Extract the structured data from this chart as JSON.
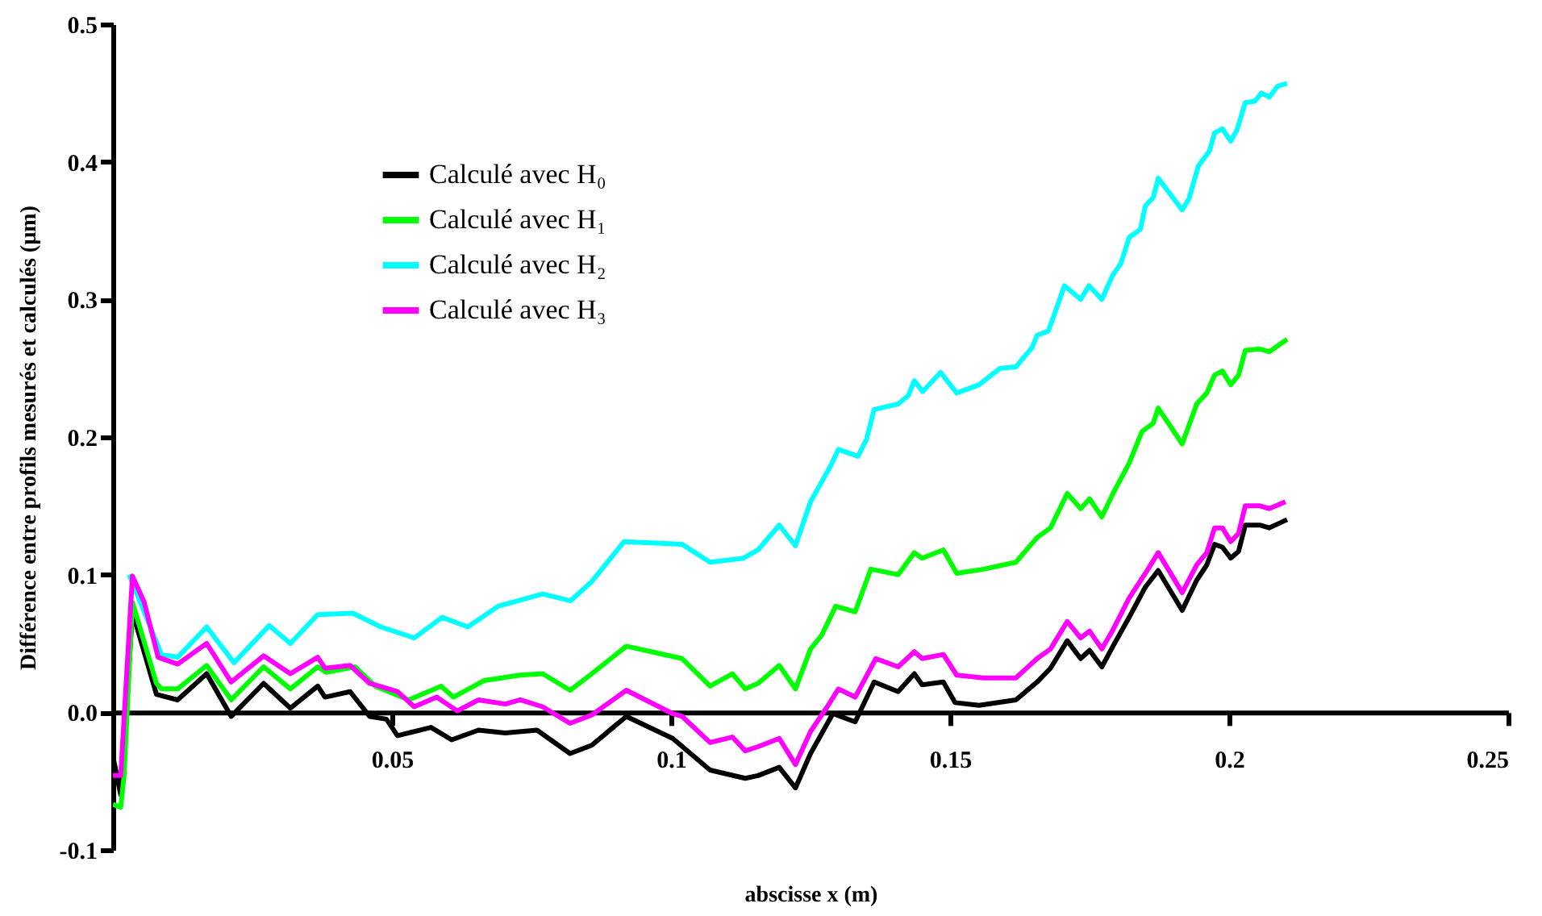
{
  "chart_data": {
    "type": "line",
    "xlabel": "abscisse x (m)",
    "ylabel": "Différence entre profils mesurés et calculés (µm)",
    "xlim": [
      0,
      0.25
    ],
    "xticks": [
      0.05,
      0.1,
      0.15,
      0.2,
      0.25
    ],
    "ylim": [
      -0.1,
      0.5
    ],
    "yticks": [
      -0.1,
      {
        "value": 0,
        "label": "0.0"
      },
      0.1,
      0.2,
      0.3,
      0.4,
      0.5
    ],
    "grid": false,
    "legend": "top left",
    "line_style": "solid",
    "marker": "none",
    "series": [
      {
        "name": "Calculé avec H₀",
        "color": "#000000",
        "x": [
          0,
          0.0014,
          0.0035,
          0.0078,
          0.0116,
          0.0168,
          0.0212,
          0.027,
          0.0318,
          0.0367,
          0.038,
          0.0425,
          0.046,
          0.049,
          0.051,
          0.057,
          0.0607,
          0.0655,
          0.0703,
          0.076,
          0.0819,
          0.0858,
          0.092,
          0.1003,
          0.107,
          0.1133,
          0.1156,
          0.1194,
          0.1223,
          0.125,
          0.129,
          0.133,
          0.1364,
          0.1407,
          0.1436,
          0.145,
          0.1488,
          0.1509,
          0.1552,
          0.1618,
          0.1656,
          0.168,
          0.171,
          0.1734,
          0.175,
          0.1772,
          0.1792,
          0.1821,
          0.185,
          0.1873,
          0.1916,
          0.1942,
          0.196,
          0.1974,
          0.1988,
          0.2003,
          0.2017,
          0.2029,
          0.2055,
          0.2072,
          0.2104
        ],
        "values": [
          -0.032,
          -0.06,
          0.073,
          0.013,
          0.009,
          0.028,
          -0.003,
          0.021,
          0.003,
          0.019,
          0.011,
          0.015,
          -0.003,
          -0.005,
          -0.017,
          -0.011,
          -0.02,
          -0.013,
          -0.015,
          -0.013,
          -0.03,
          -0.024,
          -0.003,
          -0.019,
          -0.042,
          -0.048,
          -0.046,
          -0.04,
          -0.055,
          -0.03,
          -0.001,
          -0.007,
          0.022,
          0.015,
          0.028,
          0.02,
          0.022,
          0.007,
          0.005,
          0.009,
          0.022,
          0.032,
          0.052,
          0.039,
          0.045,
          0.033,
          0.048,
          0.069,
          0.091,
          0.103,
          0.074,
          0.096,
          0.107,
          0.122,
          0.12,
          0.112,
          0.117,
          0.136,
          0.136,
          0.134,
          0.14
        ]
      },
      {
        "name": "Calculé avec H₁",
        "color": "#00ff00",
        "x": [
          0,
          0.0014,
          0.002,
          0.0035,
          0.0078,
          0.0087,
          0.0116,
          0.0168,
          0.0212,
          0.027,
          0.0318,
          0.0367,
          0.0382,
          0.0434,
          0.047,
          0.053,
          0.0588,
          0.061,
          0.0665,
          0.073,
          0.077,
          0.0819,
          0.0858,
          0.092,
          0.102,
          0.107,
          0.111,
          0.1133,
          0.1156,
          0.1194,
          0.1223,
          0.125,
          0.127,
          0.1295,
          0.133,
          0.1358,
          0.1407,
          0.1436,
          0.145,
          0.1488,
          0.1512,
          0.156,
          0.1618,
          0.1656,
          0.168,
          0.171,
          0.1734,
          0.175,
          0.1772,
          0.1792,
          0.1821,
          0.1844,
          0.1864,
          0.1873,
          0.1916,
          0.1942,
          0.196,
          0.1974,
          0.1988,
          0.2003,
          0.2017,
          0.2029,
          0.2055,
          0.2072,
          0.2104
        ],
        "values": [
          -0.067,
          -0.069,
          -0.046,
          0.08,
          0.021,
          0.017,
          0.017,
          0.034,
          0.009,
          0.033,
          0.017,
          0.033,
          0.029,
          0.033,
          0.019,
          0.009,
          0.019,
          0.011,
          0.023,
          0.027,
          0.028,
          0.016,
          0.028,
          0.048,
          0.039,
          0.019,
          0.028,
          0.017,
          0.021,
          0.034,
          0.017,
          0.046,
          0.056,
          0.077,
          0.073,
          0.104,
          0.1,
          0.116,
          0.112,
          0.118,
          0.101,
          0.104,
          0.109,
          0.127,
          0.134,
          0.159,
          0.148,
          0.155,
          0.142,
          0.159,
          0.181,
          0.204,
          0.21,
          0.221,
          0.195,
          0.224,
          0.232,
          0.245,
          0.248,
          0.238,
          0.245,
          0.263,
          0.264,
          0.262,
          0.271
        ]
      },
      {
        "name": "Calculé avec H₂",
        "color": "#00ffff",
        "x": [
          0.0029,
          0.0087,
          0.0116,
          0.0168,
          0.0217,
          0.028,
          0.0318,
          0.0367,
          0.043,
          0.048,
          0.054,
          0.059,
          0.0636,
          0.069,
          0.077,
          0.082,
          0.0858,
          0.0916,
          0.102,
          0.107,
          0.113,
          0.1156,
          0.1194,
          0.1223,
          0.125,
          0.1286,
          0.13,
          0.1335,
          0.135,
          0.1364,
          0.1407,
          0.1425,
          0.1436,
          0.1451,
          0.1483,
          0.1512,
          0.1552,
          0.159,
          0.1618,
          0.1647,
          0.1656,
          0.1676,
          0.1686,
          0.1705,
          0.1734,
          0.1749,
          0.1772,
          0.1792,
          0.1806,
          0.1821,
          0.1841,
          0.185,
          0.1864,
          0.1873,
          0.1916,
          0.1928,
          0.1945,
          0.1965,
          0.1974,
          0.1988,
          0.2003,
          0.2014,
          0.2029,
          0.2046,
          0.2058,
          0.2072,
          0.2087,
          0.2104
        ],
        "values": [
          0.1,
          0.042,
          0.04,
          0.062,
          0.036,
          0.063,
          0.05,
          0.071,
          0.072,
          0.062,
          0.054,
          0.069,
          0.062,
          0.077,
          0.086,
          0.081,
          0.095,
          0.124,
          0.122,
          0.109,
          0.112,
          0.118,
          0.136,
          0.121,
          0.153,
          0.179,
          0.191,
          0.186,
          0.198,
          0.22,
          0.224,
          0.23,
          0.241,
          0.233,
          0.247,
          0.232,
          0.238,
          0.25,
          0.251,
          0.265,
          0.274,
          0.277,
          0.288,
          0.31,
          0.3,
          0.31,
          0.3,
          0.318,
          0.326,
          0.345,
          0.351,
          0.368,
          0.374,
          0.388,
          0.365,
          0.373,
          0.397,
          0.408,
          0.421,
          0.424,
          0.415,
          0.423,
          0.443,
          0.444,
          0.45,
          0.447,
          0.455,
          0.457
        ]
      },
      {
        "name": "Calculé avec H₃",
        "color": "#ff00ff",
        "x": [
          0,
          0.0014,
          0.0035,
          0.0056,
          0.0081,
          0.0116,
          0.0168,
          0.0212,
          0.027,
          0.0318,
          0.0367,
          0.038,
          0.0425,
          0.046,
          0.051,
          0.054,
          0.058,
          0.0617,
          0.0655,
          0.0703,
          0.073,
          0.077,
          0.0819,
          0.0858,
          0.092,
          0.1003,
          0.102,
          0.107,
          0.111,
          0.1133,
          0.1156,
          0.1194,
          0.1223,
          0.125,
          0.128,
          0.13,
          0.133,
          0.1367,
          0.1407,
          0.1436,
          0.145,
          0.1488,
          0.1512,
          0.156,
          0.1618,
          0.1656,
          0.168,
          0.171,
          0.1734,
          0.175,
          0.1772,
          0.1792,
          0.1821,
          0.185,
          0.1873,
          0.1916,
          0.1942,
          0.196,
          0.1974,
          0.1988,
          0.2003,
          0.2017,
          0.2029,
          0.2055,
          0.2072,
          0.2101
        ],
        "values": [
          -0.046,
          -0.046,
          0.099,
          0.08,
          0.04,
          0.035,
          0.05,
          0.022,
          0.041,
          0.028,
          0.04,
          0.032,
          0.034,
          0.021,
          0.015,
          0.004,
          0.011,
          0.001,
          0.009,
          0.006,
          0.009,
          0.004,
          -0.008,
          -0.002,
          0.016,
          -0.001,
          -0.003,
          -0.022,
          -0.018,
          -0.028,
          -0.025,
          -0.019,
          -0.038,
          -0.014,
          0.004,
          0.017,
          0.011,
          0.039,
          0.033,
          0.044,
          0.039,
          0.042,
          0.027,
          0.025,
          0.025,
          0.039,
          0.046,
          0.066,
          0.054,
          0.059,
          0.046,
          0.06,
          0.083,
          0.101,
          0.116,
          0.087,
          0.107,
          0.116,
          0.134,
          0.134,
          0.124,
          0.13,
          0.15,
          0.15,
          0.148,
          0.153
        ]
      }
    ]
  }
}
